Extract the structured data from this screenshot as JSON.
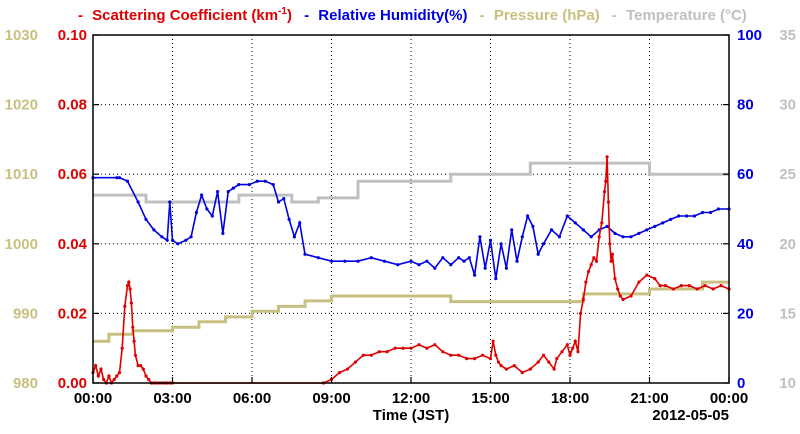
{
  "chart_data": {
    "type": "line",
    "title": {
      "dash": "-",
      "scattering": "Scattering Coefficient (km",
      "scattering_sup": "-1",
      "scattering_close": ")",
      "humidity": "Relative Humidity(%)",
      "pressure": "Pressure (hPa)",
      "temperature": "Temperature (°C)"
    },
    "xlabel": "Time (JST)",
    "date_label": "2012-05-05",
    "x_ticks": [
      "00:00",
      "03:00",
      "06:00",
      "09:00",
      "12:00",
      "15:00",
      "18:00",
      "21:00",
      "00:00"
    ],
    "xlim_hours": [
      0,
      24
    ],
    "grid": true,
    "colors": {
      "scattering": "#e00000",
      "humidity": "#0000e0",
      "pressure": "#c8c080",
      "temperature": "#c0c0c0"
    },
    "axes": {
      "scattering": {
        "ylim": [
          0,
          0.1
        ],
        "ticks": [
          "0.00",
          "0.02",
          "0.04",
          "0.06",
          "0.08",
          "0.10"
        ]
      },
      "pressure": {
        "ylim": [
          980,
          1030
        ],
        "ticks": [
          "980",
          "990",
          "1000",
          "1010",
          "1020",
          "1030"
        ]
      },
      "humidity": {
        "ylim": [
          0,
          100
        ],
        "ticks": [
          "0",
          "20",
          "40",
          "60",
          "80",
          "100"
        ]
      },
      "temperature": {
        "ylim": [
          10,
          35
        ],
        "ticks": [
          "10",
          "15",
          "20",
          "25",
          "30",
          "35"
        ]
      }
    },
    "series": [
      {
        "name": "Temperature (°C)",
        "axis": "temperature",
        "step": true,
        "x": [
          0,
          0.5,
          2.0,
          5.5,
          7.5,
          8.5,
          10.0,
          13.5,
          16.5,
          18.5,
          21.0,
          24.0
        ],
        "y": [
          23.5,
          23.5,
          23.0,
          23.5,
          23.0,
          23.3,
          24.5,
          25.0,
          25.8,
          25.8,
          25.0,
          25.0
        ]
      },
      {
        "name": "Pressure (hPa)",
        "axis": "pressure",
        "step": true,
        "x": [
          0,
          0.2,
          0.6,
          1.5,
          2.0,
          3.0,
          4.0,
          5.0,
          6.0,
          7.0,
          8.0,
          9.0,
          13.5,
          16.5,
          18.5,
          21.0,
          23.0,
          24.0
        ],
        "y": [
          986,
          986,
          987,
          987.5,
          987.5,
          988,
          988.8,
          989.5,
          990.3,
          991,
          991.8,
          992.5,
          991.7,
          991.7,
          992.8,
          993.5,
          994.5,
          994.5
        ]
      },
      {
        "name": "Relative Humidity(%)",
        "axis": "humidity",
        "x": [
          0,
          0.9,
          1.0,
          1.3,
          1.7,
          2.0,
          2.3,
          2.6,
          2.8,
          2.9,
          3.0,
          3.2,
          3.5,
          3.7,
          3.9,
          4.1,
          4.3,
          4.5,
          4.7,
          4.9,
          5.1,
          5.3,
          5.5,
          5.9,
          6.2,
          6.5,
          6.8,
          7.0,
          7.2,
          7.4,
          7.6,
          7.8,
          8.0,
          8.5,
          9.0,
          9.5,
          10.0,
          10.5,
          11.0,
          11.5,
          12.0,
          12.3,
          12.6,
          12.9,
          13.2,
          13.5,
          13.8,
          14.0,
          14.2,
          14.4,
          14.6,
          14.8,
          15.0,
          15.2,
          15.4,
          15.6,
          15.8,
          16.0,
          16.2,
          16.4,
          16.6,
          16.8,
          17.0,
          17.3,
          17.6,
          17.9,
          18.2,
          18.5,
          18.8,
          19.1,
          19.4,
          19.7,
          20.0,
          20.3,
          20.6,
          20.9,
          21.2,
          21.5,
          21.8,
          22.1,
          22.4,
          22.7,
          23.0,
          23.3,
          23.6,
          24.0
        ],
        "y": [
          59,
          59,
          59,
          58,
          52,
          47,
          44,
          42,
          41,
          52,
          41,
          40,
          41,
          42,
          49,
          54,
          50,
          48,
          55,
          43,
          55,
          56,
          57,
          57,
          58,
          58,
          57,
          52,
          53,
          47,
          42,
          46,
          37,
          36,
          35,
          35,
          35,
          36,
          35,
          34,
          35,
          34,
          35,
          33,
          36,
          34,
          36,
          35,
          36,
          31,
          42,
          33,
          41,
          30,
          40,
          33,
          44,
          35,
          42,
          48,
          45,
          37,
          40,
          44,
          42,
          48,
          46,
          44,
          42,
          44,
          45,
          43,
          42,
          42,
          43,
          44,
          45,
          46,
          47,
          48,
          48,
          48,
          49,
          49,
          50,
          50
        ]
      },
      {
        "name": "Scattering Coefficient",
        "axis": "scattering",
        "x": [
          0,
          0.1,
          0.2,
          0.3,
          0.4,
          0.5,
          0.6,
          0.7,
          0.8,
          0.9,
          1.0,
          1.1,
          1.2,
          1.3,
          1.35,
          1.4,
          1.45,
          1.5,
          1.55,
          1.6,
          1.7,
          1.8,
          1.9,
          2.0,
          2.1,
          2.2,
          2.3,
          2.4,
          2.5,
          2.6,
          2.7,
          2.8,
          2.9,
          3.0,
          8.7,
          9.0,
          9.3,
          9.6,
          9.9,
          10.2,
          10.5,
          10.8,
          11.1,
          11.4,
          11.7,
          12.0,
          12.3,
          12.6,
          12.9,
          13.2,
          13.5,
          13.8,
          14.1,
          14.4,
          14.7,
          15.0,
          15.1,
          15.2,
          15.3,
          15.4,
          15.6,
          15.9,
          16.2,
          16.5,
          16.8,
          17.0,
          17.2,
          17.4,
          17.5,
          17.7,
          17.9,
          18.0,
          18.1,
          18.2,
          18.3,
          18.4,
          18.5,
          18.6,
          18.7,
          18.8,
          18.9,
          19.0,
          19.1,
          19.2,
          19.3,
          19.35,
          19.4,
          19.45,
          19.5,
          19.55,
          19.6,
          19.7,
          19.8,
          19.9,
          20.0,
          20.3,
          20.6,
          20.9,
          21.2,
          21.4,
          21.6,
          21.9,
          22.2,
          22.5,
          22.8,
          23.1,
          23.4,
          23.7,
          24.0
        ],
        "y": [
          0.003,
          0.005,
          0.002,
          0.004,
          0.001,
          0.0,
          0.002,
          0.0,
          0.001,
          0.002,
          0.003,
          0.01,
          0.022,
          0.028,
          0.029,
          0.027,
          0.023,
          0.016,
          0.012,
          0.008,
          0.005,
          0.005,
          0.004,
          0.002,
          0.001,
          0.0,
          0.0,
          0.0,
          0.0,
          0.0,
          0.0,
          0.0,
          0.0,
          0.0,
          0.0,
          0.001,
          0.003,
          0.004,
          0.006,
          0.008,
          0.008,
          0.009,
          0.009,
          0.01,
          0.01,
          0.01,
          0.011,
          0.01,
          0.011,
          0.009,
          0.008,
          0.008,
          0.007,
          0.007,
          0.008,
          0.007,
          0.012,
          0.008,
          0.006,
          0.005,
          0.004,
          0.005,
          0.003,
          0.004,
          0.006,
          0.008,
          0.006,
          0.004,
          0.007,
          0.009,
          0.011,
          0.008,
          0.01,
          0.012,
          0.009,
          0.02,
          0.024,
          0.029,
          0.032,
          0.034,
          0.036,
          0.035,
          0.042,
          0.046,
          0.055,
          0.058,
          0.065,
          0.052,
          0.04,
          0.035,
          0.037,
          0.03,
          0.027,
          0.025,
          0.024,
          0.025,
          0.029,
          0.031,
          0.03,
          0.028,
          0.028,
          0.027,
          0.028,
          0.028,
          0.027,
          0.028,
          0.027,
          0.028,
          0.027
        ]
      }
    ]
  }
}
